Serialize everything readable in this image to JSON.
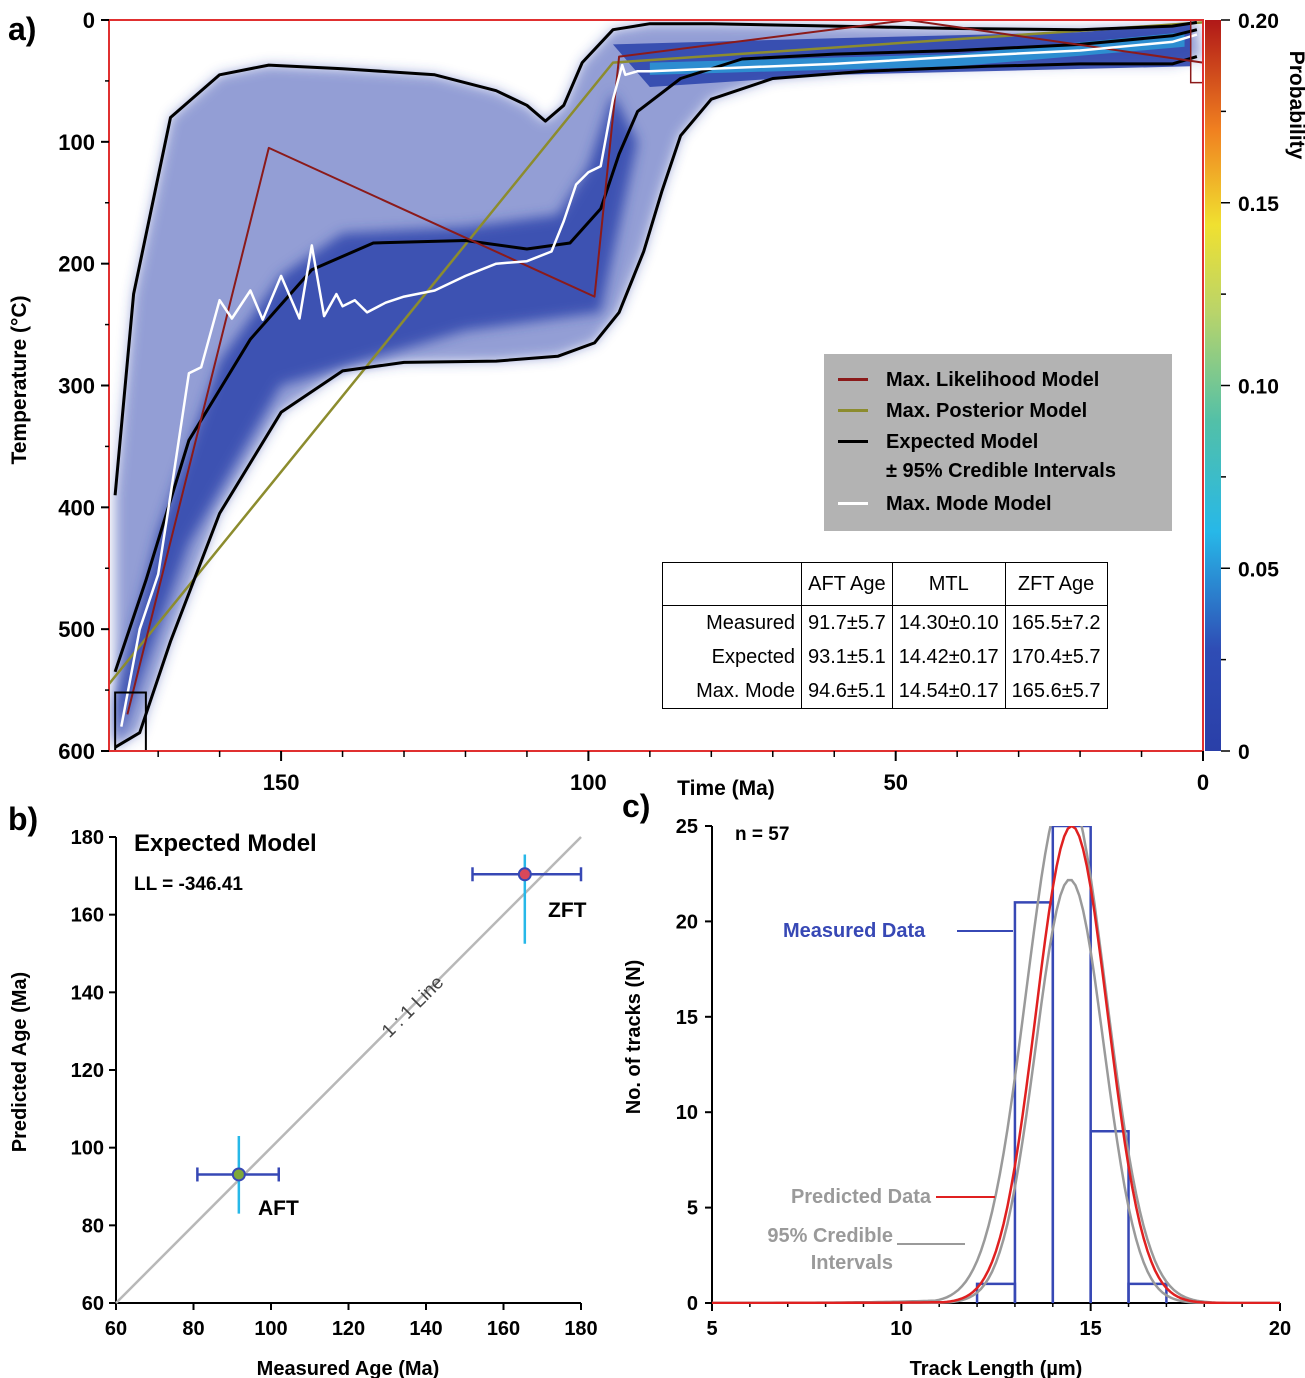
{
  "panel_labels": [
    "a)",
    "b)",
    "c)"
  ],
  "colorbar": {
    "title": "Probability",
    "ticks": [
      "0.20",
      "0.15",
      "0.10",
      "0.05",
      "0"
    ],
    "max": 0.2
  },
  "legend_a": [
    {
      "label": "Max. Likelihood Model",
      "color": "#8b1a1a"
    },
    {
      "label": "Max. Posterior Model",
      "color": "#8c8c2e"
    },
    {
      "label": "Expected Model",
      "color": "#000000"
    },
    {
      "label": "± 95% Credible Intervals",
      "color": ""
    },
    {
      "label": "Max. Mode Model",
      "color": "#ffffff"
    }
  ],
  "table": {
    "header": [
      "",
      "AFT Age",
      "MTL",
      "ZFT Age"
    ],
    "rows": [
      [
        "Measured",
        "91.7±5.7",
        "14.30±0.10",
        "165.5±7.2"
      ],
      [
        "Expected",
        "93.1±5.1",
        "14.42±0.17",
        "170.4±5.7"
      ],
      [
        "Max. Mode",
        "94.6±5.1",
        "14.54±0.17",
        "165.6±5.7"
      ]
    ]
  },
  "panel_b_text": {
    "title": "Expected Model",
    "ll": "LL = -346.41",
    "line_label": "1 : 1 Line",
    "aft": "AFT",
    "zft": "ZFT"
  },
  "panel_c_text": {
    "n": "n = 57",
    "measured": "Measured Data",
    "predicted": "Predicted Data",
    "ci_line1": "95% Credible",
    "ci_line2": "Intervals"
  },
  "chart_data": [
    {
      "type": "heatmap",
      "panel": "a",
      "xlabel": "Time (Ma)",
      "ylabel": "Temperature (°C)",
      "xlim": [
        178,
        0
      ],
      "ylim": [
        600,
        0
      ],
      "x_ticks": [
        150,
        100,
        50,
        0
      ],
      "y_ticks": [
        0,
        100,
        200,
        300,
        400,
        500,
        600
      ],
      "colorbar_range": [
        0,
        0.2
      ],
      "series": [
        {
          "name": "Max. Likelihood Model",
          "x": [
            175,
            152,
            99,
            95,
            48,
            0
          ],
          "y": [
            570,
            105,
            227,
            30,
            0,
            35
          ]
        },
        {
          "name": "Max. Posterior Model",
          "x": [
            178,
            96,
            0
          ],
          "y": [
            545,
            35,
            2
          ]
        },
        {
          "name": "Expected Model",
          "x": [
            177,
            172,
            165,
            155,
            145,
            135,
            120,
            110,
            103,
            98,
            95,
            92,
            85,
            75,
            60,
            40,
            20,
            5,
            1
          ],
          "y": [
            535,
            460,
            345,
            262,
            205,
            183,
            181,
            188,
            183,
            155,
            110,
            75,
            48,
            32,
            28,
            25,
            20,
            13,
            8
          ]
        },
        {
          "name": "± 95% Credible Intervals (upper)",
          "x": [
            177,
            174,
            168,
            160,
            152,
            140,
            125,
            115,
            110,
            107,
            104,
            101,
            96,
            90,
            80,
            60,
            40,
            20,
            5,
            1
          ],
          "y": [
            390,
            225,
            80,
            45,
            37,
            40,
            45,
            58,
            70,
            83,
            70,
            35,
            8,
            3,
            3,
            5,
            7,
            8,
            5,
            2
          ]
        },
        {
          "name": "± 95% Credible Intervals (lower)",
          "x": [
            177,
            173,
            168,
            160,
            150,
            140,
            130,
            115,
            105,
            99,
            95,
            91,
            88,
            85,
            80,
            70,
            55,
            35,
            20,
            5,
            1
          ],
          "y": [
            597,
            585,
            510,
            405,
            322,
            288,
            281,
            280,
            276,
            265,
            240,
            190,
            140,
            95,
            65,
            48,
            42,
            38,
            36,
            36,
            30
          ]
        },
        {
          "name": "Max. Mode Model",
          "x": [
            176,
            173,
            170,
            168,
            165,
            163,
            160,
            158,
            155,
            153,
            150,
            147,
            145,
            143,
            141,
            140,
            138,
            136,
            133,
            130,
            125,
            120,
            115,
            110,
            106,
            104,
            102,
            100,
            98,
            96,
            94.5,
            94,
            92,
            90,
            80,
            60,
            40,
            20,
            5,
            1
          ],
          "y": [
            580,
            500,
            455,
            390,
            290,
            285,
            230,
            245,
            222,
            246,
            210,
            245,
            185,
            243,
            225,
            235,
            230,
            240,
            232,
            227,
            222,
            210,
            200,
            198,
            190,
            165,
            135,
            125,
            120,
            65,
            37,
            45,
            42,
            42,
            40,
            36,
            30,
            25,
            18,
            12
          ]
        }
      ]
    },
    {
      "type": "scatter",
      "panel": "b",
      "xlabel": "Measured Age (Ma)",
      "ylabel": "Predicted Age (Ma)",
      "xlim": [
        60,
        180
      ],
      "ylim": [
        60,
        180
      ],
      "x_ticks": [
        60,
        80,
        100,
        120,
        140,
        160,
        180
      ],
      "y_ticks": [
        60,
        80,
        100,
        120,
        140,
        160,
        180
      ],
      "points": [
        {
          "label": "AFT",
          "x": 91.7,
          "x_err": [
            81,
            102
          ],
          "y": 93.1,
          "y_err": [
            83,
            103
          ]
        },
        {
          "label": "ZFT",
          "x": 165.5,
          "x_err": [
            152,
            180
          ],
          "y": 170.4,
          "y_err": [
            152.5,
            175.5
          ]
        }
      ]
    },
    {
      "type": "bar",
      "panel": "c",
      "xlabel": "Track Length (µm)",
      "ylabel": "No. of tracks (N)",
      "xlim": [
        5,
        20
      ],
      "ylim": [
        0,
        25
      ],
      "x_ticks": [
        5,
        10,
        15,
        20
      ],
      "y_ticks": [
        0,
        5,
        10,
        15,
        20,
        25
      ],
      "bins": [
        [
          12,
          13
        ],
        [
          13,
          14
        ],
        [
          14,
          15
        ],
        [
          15,
          16
        ],
        [
          16,
          17
        ]
      ],
      "counts": [
        1,
        21,
        25,
        9,
        1
      ],
      "predicted": {
        "mean": 14.5,
        "sd": 0.95,
        "peak": 25
      },
      "credible_upper": {
        "mean": 14.35,
        "sd": 1.05,
        "peak": 27
      },
      "credible_lower": {
        "mean": 14.45,
        "sd": 0.9,
        "peak": 22.2
      }
    }
  ]
}
